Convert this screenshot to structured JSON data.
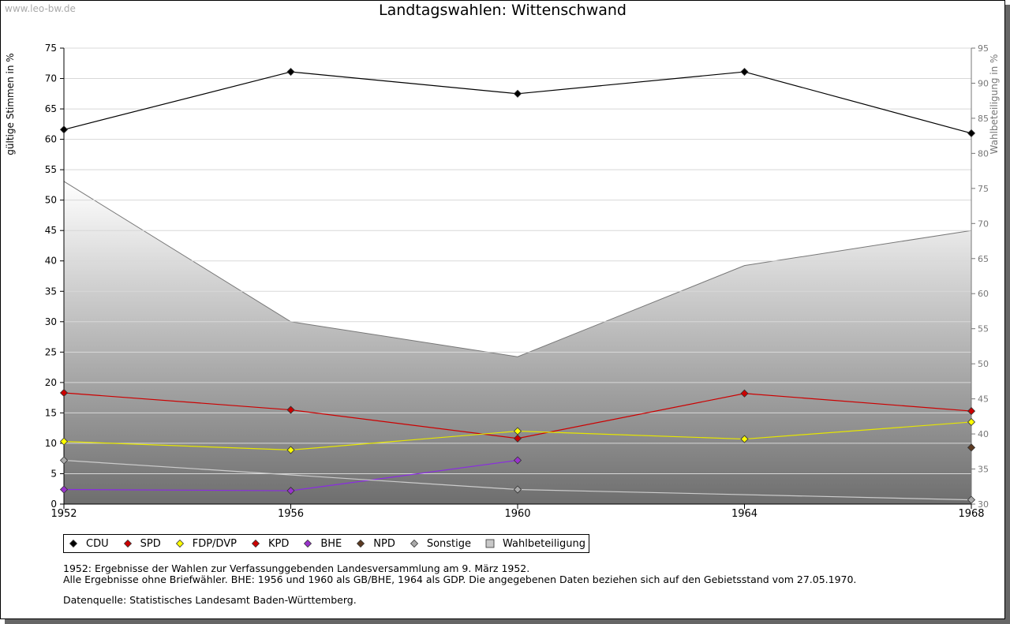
{
  "watermark": "www.leo-bw.de",
  "chart_data": {
    "type": "line",
    "title": "Landtagswahlen: Wittenschwand",
    "ylabel": "gültige Stimmen in %",
    "y2label": "Wahlbeteiligung in %",
    "x": [
      1952,
      1956,
      1960,
      1964,
      1968
    ],
    "xticks": [
      "1952",
      "1956",
      "1960",
      "1964",
      "1968"
    ],
    "ylim": [
      0,
      75
    ],
    "yticks": [
      0,
      5,
      10,
      15,
      20,
      25,
      30,
      35,
      40,
      45,
      50,
      55,
      60,
      65,
      70,
      75
    ],
    "y2lim": [
      30,
      95
    ],
    "y2ticks": [
      30,
      35,
      40,
      45,
      50,
      55,
      60,
      65,
      70,
      75,
      80,
      85,
      90,
      95
    ],
    "grid": true,
    "series": [
      {
        "name": "CDU",
        "color": "#000000",
        "marker": "#000000",
        "values": [
          61.6,
          71.1,
          67.5,
          71.1,
          61.0
        ]
      },
      {
        "name": "SPD",
        "color": "#cc0000",
        "marker": "#cc0000",
        "values": [
          18.3,
          15.5,
          10.8,
          18.2,
          15.3
        ]
      },
      {
        "name": "FDP/DVP",
        "color": "#e6e600",
        "marker": "#ffff00",
        "values": [
          10.3,
          8.9,
          12.0,
          10.7,
          13.5
        ]
      },
      {
        "name": "KPD",
        "color": "#cc0000",
        "marker": "#cc0000",
        "values": [
          null,
          null,
          null,
          null,
          null
        ]
      },
      {
        "name": "BHE",
        "color": "#8a2be2",
        "marker": "#9933cc",
        "values": [
          2.4,
          2.2,
          7.2,
          null,
          null
        ]
      },
      {
        "name": "NPD",
        "color": "#5c3a21",
        "marker": "#5c3a21",
        "values": [
          null,
          null,
          null,
          null,
          9.3
        ]
      },
      {
        "name": "Sonstige",
        "color": "#cccccc",
        "marker": "#aaaaaa",
        "values": [
          7.2,
          null,
          2.4,
          null,
          0.7
        ]
      }
    ],
    "area_series": {
      "name": "Wahlbeteiligung",
      "axis": "right",
      "values": [
        76.0,
        56.0,
        51.0,
        64.0,
        69.0
      ]
    },
    "legend": [
      "CDU",
      "SPD",
      "FDP/DVP",
      "KPD",
      "BHE",
      "NPD",
      "Sonstige",
      "Wahlbeteiligung"
    ],
    "legend_position": "bottom-left"
  },
  "notes": {
    "line1": "1952: Ergebnisse der Wahlen zur Verfassunggebenden Landesversammlung am 9. März 1952.",
    "line2": "Alle Ergebnisse ohne Briefwähler. BHE: 1956 und 1960 als GB/BHE, 1964 als GDP. Die angegebenen Daten beziehen sich auf den Gebietsstand vom 27.05.1970.",
    "source": "Datenquelle: Statistisches Landesamt Baden-Württemberg."
  }
}
